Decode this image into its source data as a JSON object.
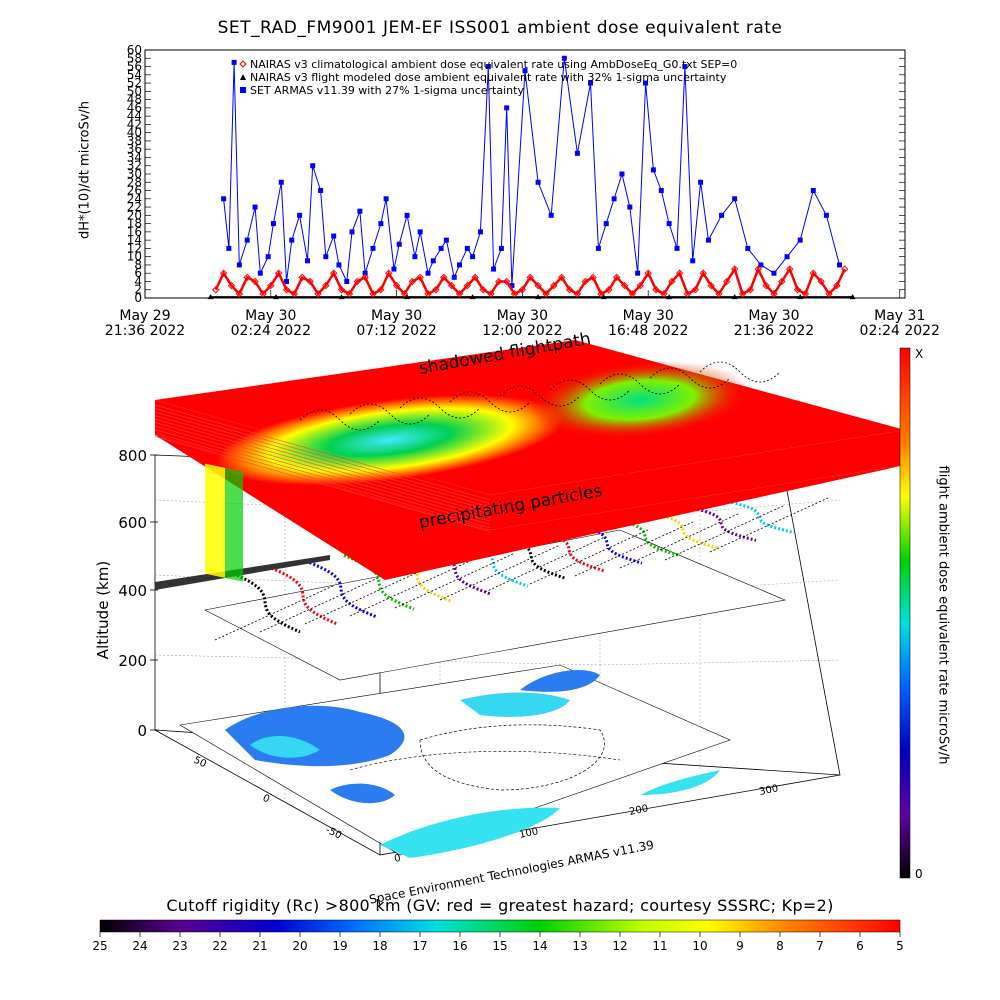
{
  "title": "SET_RAD_FM9001  JEM-EF ISS001 ambient dose equivalent rate",
  "chart_data": [
    {
      "type": "line",
      "ylabel": "dH*(10)/dt microSv/h",
      "ylim": [
        0,
        60
      ],
      "yticks": [
        0,
        2,
        4,
        6,
        8,
        10,
        12,
        14,
        16,
        18,
        20,
        22,
        24,
        26,
        28,
        30,
        32,
        34,
        36,
        38,
        40,
        42,
        44,
        46,
        48,
        50,
        52,
        54,
        56,
        58,
        60
      ],
      "xlim_hours": [
        0,
        29
      ],
      "xticks": [
        {
          "hour": 0,
          "line1": "May 29",
          "line2": "21:36 2022"
        },
        {
          "hour": 4.8,
          "line1": "May 30",
          "line2": "02:24 2022"
        },
        {
          "hour": 9.6,
          "line1": "May 30",
          "line2": "07:12 2022"
        },
        {
          "hour": 14.4,
          "line1": "May 30",
          "line2": "12:00 2022"
        },
        {
          "hour": 19.2,
          "line1": "May 30",
          "line2": "16:48 2022"
        },
        {
          "hour": 24.0,
          "line1": "May 30",
          "line2": "21:36 2022"
        },
        {
          "hour": 28.8,
          "line1": "May 31",
          "line2": "02:24 2022"
        }
      ],
      "legend": [
        {
          "marker": "diamond",
          "color": "#ff0000",
          "text": "NAIRAS v3 climatological ambient dose equivalent rate using AmbDoseEq_G0.txt SEP=0"
        },
        {
          "marker": "triangle",
          "color": "#000000",
          "text": "NAIRAS v3 flight modeled dose ambient equivalent rate with 32% 1-sigma uncertainty"
        },
        {
          "marker": "square",
          "color": "#0000ff",
          "text": "SET ARMAS v11.39 with 27% 1-sigma uncertainty"
        }
      ],
      "series": [
        {
          "name": "NAIRAS v3 climatological ambient dose equivalent rate using AmbDoseEq_G0.txt SEP=0",
          "color": "#ff0000",
          "x": [
            2.7,
            3.0,
            3.3,
            3.6,
            3.9,
            4.2,
            4.5,
            4.8,
            5.1,
            5.4,
            5.7,
            6.0,
            6.3,
            6.6,
            6.9,
            7.2,
            7.5,
            7.8,
            8.1,
            8.4,
            8.7,
            9.0,
            9.3,
            9.6,
            9.9,
            10.2,
            10.5,
            10.8,
            11.1,
            11.4,
            11.7,
            12.0,
            12.3,
            12.6,
            12.9,
            13.2,
            13.5,
            13.8,
            14.1,
            14.4,
            14.7,
            15.0,
            15.3,
            15.6,
            15.9,
            16.2,
            16.5,
            16.8,
            17.1,
            17.4,
            17.7,
            18.0,
            18.3,
            18.6,
            18.9,
            19.2,
            19.5,
            19.8,
            20.1,
            20.4,
            20.7,
            21.0,
            21.3,
            21.6,
            21.9,
            22.2,
            22.5,
            22.8,
            23.1,
            23.4,
            23.7,
            24.0,
            24.3,
            24.6,
            24.9,
            25.2,
            25.5,
            25.8,
            26.1,
            26.4,
            26.7
          ],
          "y": [
            2,
            6,
            3,
            1,
            5,
            4,
            1,
            3,
            6,
            2,
            1,
            5,
            4,
            1,
            3,
            6,
            2,
            1,
            4,
            5,
            1,
            2,
            6,
            3,
            1,
            4,
            5,
            1,
            2,
            5,
            3,
            1,
            3,
            5,
            2,
            1,
            4,
            4,
            1,
            2,
            5,
            3,
            1,
            3,
            5,
            2,
            1,
            4,
            5,
            1,
            2,
            5,
            3,
            1,
            3,
            6,
            2,
            1,
            4,
            6,
            1,
            2,
            6,
            3,
            1,
            4,
            7,
            1,
            2,
            7,
            3,
            1,
            4,
            7,
            2,
            1,
            6,
            4,
            1,
            3,
            7
          ]
        },
        {
          "name": "NAIRAS v3 flight modeled dose ambient equivalent rate with 32% 1-sigma uncertainty",
          "color": "#000000",
          "x": [
            2.5,
            5,
            7.5,
            10,
            12.5,
            15,
            17.5,
            20,
            22.5,
            25,
            27
          ],
          "y": [
            0.2,
            0.2,
            0.2,
            0.2,
            0.2,
            0.2,
            0.2,
            0.2,
            0.2,
            0.2,
            0.2
          ]
        },
        {
          "name": "SET ARMAS v11.39 with 27% 1-sigma uncertainty",
          "color": "#0000ff",
          "x": [
            3.0,
            3.2,
            3.4,
            3.6,
            3.9,
            4.2,
            4.4,
            4.7,
            4.9,
            5.2,
            5.4,
            5.6,
            5.9,
            6.2,
            6.4,
            6.7,
            6.9,
            7.2,
            7.4,
            7.7,
            7.9,
            8.2,
            8.4,
            8.7,
            9.0,
            9.2,
            9.5,
            9.7,
            10.0,
            10.3,
            10.5,
            10.8,
            11.0,
            11.3,
            11.5,
            11.8,
            12.0,
            12.3,
            12.5,
            12.8,
            13.1,
            13.3,
            13.6,
            13.8,
            14.0,
            14.5,
            15.0,
            15.5,
            16.0,
            16.5,
            17.0,
            17.3,
            17.6,
            17.9,
            18.2,
            18.5,
            18.8,
            19.1,
            19.4,
            19.7,
            20.0,
            20.3,
            20.6,
            20.9,
            21.2,
            21.5,
            22.0,
            22.5,
            23.0,
            23.5,
            24.0,
            24.5,
            25.0,
            25.5,
            26.0,
            26.5
          ],
          "y": [
            24,
            12,
            57,
            8,
            14,
            22,
            6,
            10,
            18,
            28,
            4,
            14,
            20,
            9,
            32,
            26,
            10,
            15,
            8,
            4,
            16,
            21,
            6,
            12,
            18,
            24,
            7,
            13,
            20,
            10,
            16,
            6,
            9,
            12,
            14,
            5,
            8,
            12,
            10,
            16,
            56,
            7,
            12,
            46,
            3,
            55,
            28,
            20,
            58,
            35,
            52,
            12,
            18,
            24,
            30,
            22,
            6,
            52,
            31,
            26,
            18,
            12,
            56,
            9,
            28,
            14,
            20,
            24,
            12,
            8,
            6,
            10,
            14,
            26,
            20,
            8
          ]
        }
      ]
    },
    {
      "type": "3d-map",
      "ylabel": "Altitude (km)",
      "zticks": [
        "0",
        "200",
        "400",
        "600",
        "800"
      ],
      "lat_ticks": [
        "50",
        "0",
        "-50"
      ],
      "lon_ticks": [
        "0",
        "100",
        "200",
        "300"
      ],
      "annotations": [
        "shadowed flightpath",
        "precipitating particles"
      ],
      "credit": "Space Environment Technologies ARMAS v11.39"
    }
  ],
  "colorbar_right": {
    "label": "flight ambient dose equivalent rate microSv/h",
    "top": "X",
    "bottom": "0"
  },
  "colorbar_bottom": {
    "title": "Cutoff rigidity (Rc) >800 km (GV: red = greatest hazard; courtesy SSSRC; Kp=2)",
    "ticks": [
      "25",
      "24",
      "23",
      "22",
      "21",
      "20",
      "19",
      "18",
      "17",
      "16",
      "15",
      "14",
      "13",
      "12",
      "11",
      "10",
      "9",
      "8",
      "7",
      "6",
      "5"
    ]
  },
  "colors": {
    "red": "#ff0000",
    "blue": "#0000ff",
    "cyan": "#35e2f0"
  }
}
